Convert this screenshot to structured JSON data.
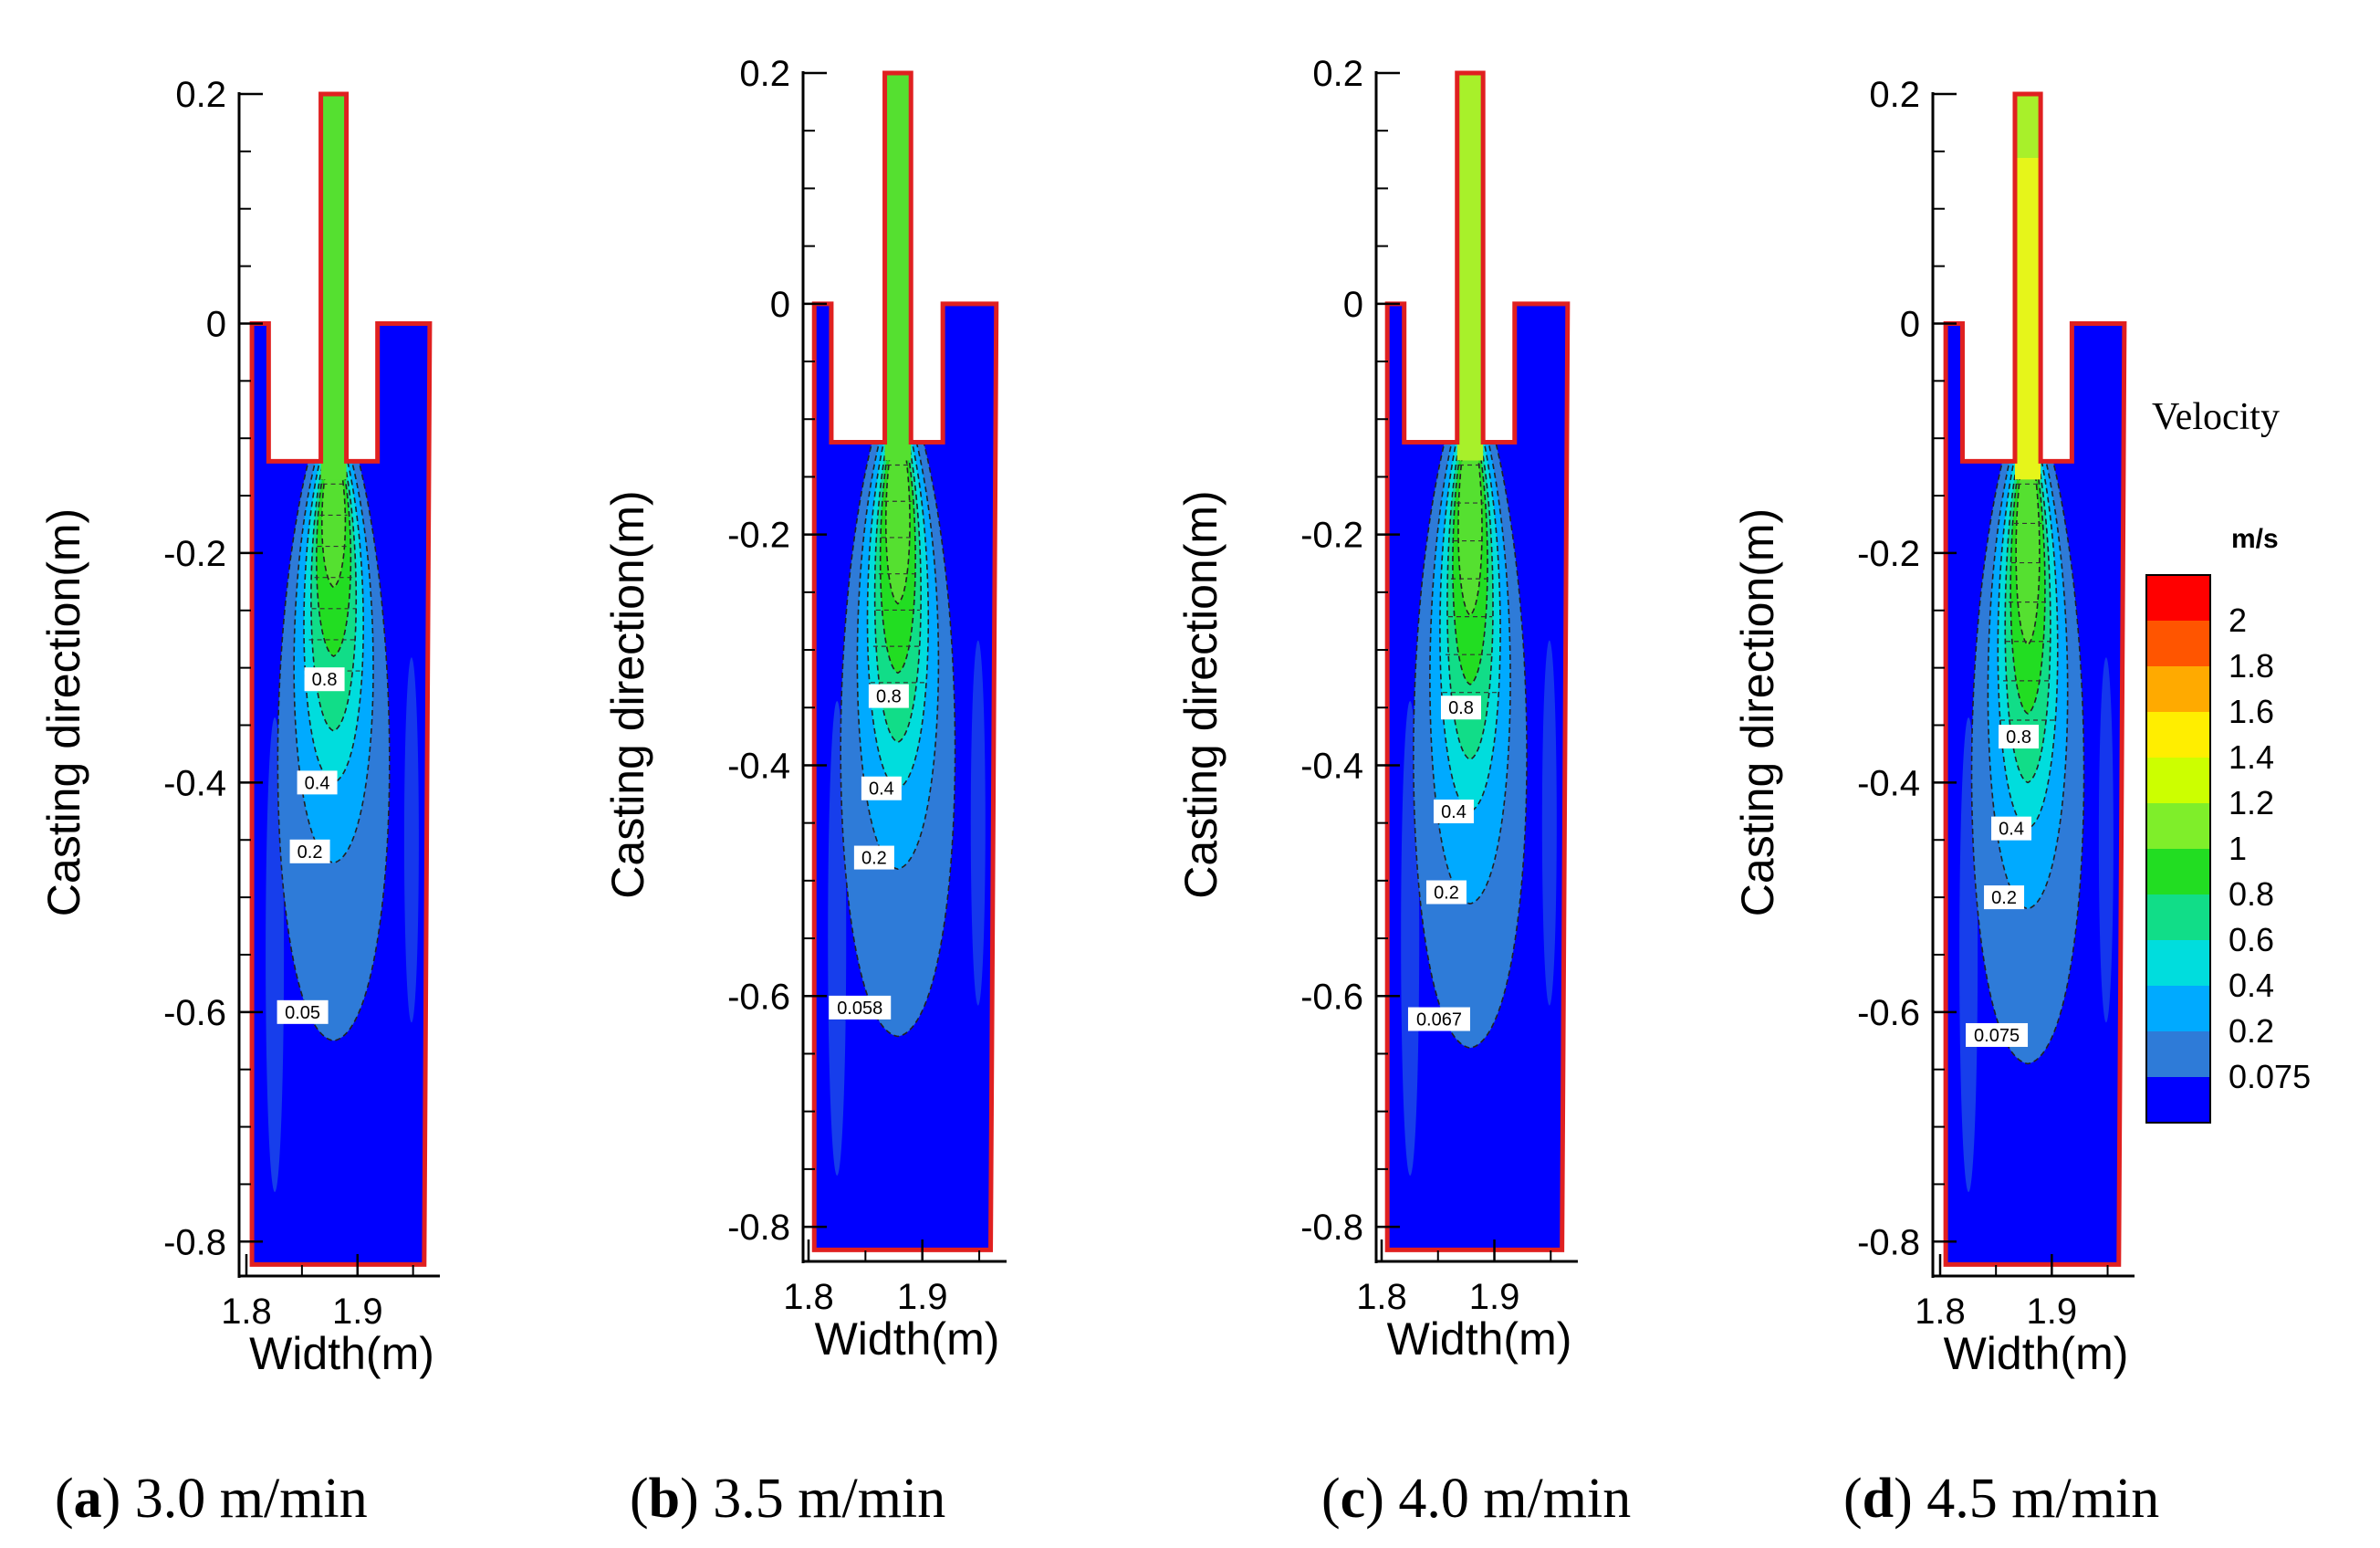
{
  "chart_data": [
    {
      "type": "contour",
      "panel": "a",
      "caption_letter": "a",
      "caption_text": " 3.0 m/min",
      "casting_speed": "3.0 m/min",
      "xlabel": "Width(m)",
      "ylabel": "Casting direction(m)",
      "xticks": [
        "1.8",
        "1.9"
      ],
      "yticks": [
        "0.2",
        "0",
        "-0.2",
        "-0.4",
        "-0.6",
        "-0.8"
      ],
      "xlim": [
        1.8,
        1.97
      ],
      "ylim": [
        -0.83,
        0.2
      ],
      "jet_velocity": 1.0,
      "contour_labels": [
        "0.8",
        "0.4",
        "0.2",
        "0.05"
      ],
      "contour_label_values": [
        0.8,
        0.4,
        0.2,
        0.05
      ],
      "contour_label_depths": [
        -0.31,
        -0.4,
        -0.46,
        -0.6
      ]
    },
    {
      "type": "contour",
      "panel": "b",
      "caption_letter": "b",
      "caption_text": " 3.5 m/min",
      "casting_speed": "3.5 m/min",
      "xlabel": "Width(m)",
      "ylabel": "Casting direction(m)",
      "xticks": [
        "1.8",
        "1.9"
      ],
      "yticks": [
        "0.2",
        "0",
        "-0.2",
        "-0.4",
        "-0.6",
        "-0.8"
      ],
      "xlim": [
        1.8,
        1.97
      ],
      "ylim": [
        -0.83,
        0.2
      ],
      "jet_velocity": 1.1,
      "contour_labels": [
        "0.8",
        "0.4",
        "0.2",
        "0.058"
      ],
      "contour_label_values": [
        0.8,
        0.4,
        0.2,
        0.058
      ],
      "contour_label_depths": [
        -0.34,
        -0.42,
        -0.48,
        -0.61
      ]
    },
    {
      "type": "contour",
      "panel": "c",
      "caption_letter": "c",
      "caption_text": " 4.0 m/min",
      "casting_speed": "4.0 m/min",
      "xlabel": "Width(m)",
      "ylabel": "Casting direction(m)",
      "xticks": [
        "1.8",
        "1.9"
      ],
      "yticks": [
        "0.2",
        "0",
        "-0.2",
        "-0.4",
        "-0.6",
        "-0.8"
      ],
      "xlim": [
        1.8,
        1.97
      ],
      "ylim": [
        -0.83,
        0.2
      ],
      "jet_velocity": 1.25,
      "contour_labels": [
        "0.8",
        "0.4",
        "0.2",
        "0.067"
      ],
      "contour_label_values": [
        0.8,
        0.4,
        0.2,
        0.067
      ],
      "contour_label_depths": [
        -0.35,
        -0.44,
        -0.51,
        -0.62
      ]
    },
    {
      "type": "contour",
      "panel": "d",
      "caption_letter": "d",
      "caption_text": " 4.5 m/min",
      "casting_speed": "4.5 m/min",
      "xlabel": "Width(m)",
      "ylabel": "Casting direction(m)",
      "xticks": [
        "1.8",
        "1.9"
      ],
      "yticks": [
        "0.2",
        "0",
        "-0.2",
        "-0.4",
        "-0.6",
        "-0.8"
      ],
      "xlim": [
        1.8,
        1.97
      ],
      "ylim": [
        -0.83,
        0.2
      ],
      "jet_velocity": 1.6,
      "contour_labels": [
        "0.8",
        "0.4",
        "0.2",
        "0.075"
      ],
      "contour_label_values": [
        0.8,
        0.4,
        0.2,
        0.075
      ],
      "contour_label_depths": [
        -0.36,
        -0.44,
        -0.5,
        -0.62
      ]
    }
  ],
  "legend": {
    "title": "Velocity",
    "unit": "m/s",
    "labels": [
      "2",
      "1.8",
      "1.6",
      "1.4",
      "1.2",
      "1",
      "0.8",
      "0.6",
      "0.4",
      "0.2",
      "0.075"
    ],
    "colors": [
      "#ff0000",
      "#ff5500",
      "#ffaa00",
      "#ffee00",
      "#ccff00",
      "#7fee2a",
      "#22dd22",
      "#11dd88",
      "#00dddd",
      "#00aaff",
      "#2e7bd8",
      "#0000ff"
    ]
  },
  "colors": {
    "outline": "#e02020",
    "background": "#0000ff"
  }
}
